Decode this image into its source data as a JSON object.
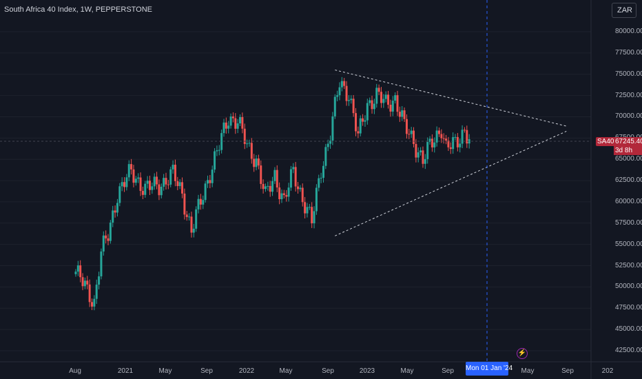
{
  "header": {
    "title": "South Africa 40 Index, 1W, PEPPERSTONE",
    "currency": "ZAR"
  },
  "chart_data": {
    "type": "candlestick",
    "title": "South Africa 40 Index, 1W, PEPPERSTONE",
    "ylim": [
      42000,
      82000
    ],
    "y_ticks": [
      "80000.00",
      "77500.00",
      "75000.00",
      "72500.00",
      "70000.00",
      "67500.00",
      "65000.00",
      "62500.00",
      "60000.00",
      "57500.00",
      "55000.00",
      "52500.00",
      "50000.00",
      "47500.00",
      "45000.00",
      "42500.00"
    ],
    "x_ticks": [
      "Aug",
      "2021",
      "May",
      "Sep",
      "2022",
      "May",
      "Sep",
      "2023",
      "May",
      "Sep",
      "May",
      "Sep",
      "202"
    ],
    "last_price": {
      "symbol": "SA40",
      "value": "67245.40",
      "countdown": "3d 8h"
    },
    "crosshair": {
      "date_label": "Mon 01 Jan '24"
    },
    "trendlines": [
      {
        "from": [
          "2022-09-26",
          75500
        ],
        "to": [
          "2024-08-26",
          68900
        ]
      },
      {
        "from": [
          "2022-09-26",
          56000
        ],
        "to": [
          "2024-08-26",
          68300
        ]
      }
    ],
    "ohlc": []
  },
  "colors": {
    "up": "#26a69a",
    "down": "#ef5350",
    "background": "#131722",
    "grid": "#1e222d",
    "crosshair": "#2962ff",
    "label": "#b2283a"
  },
  "icons": {
    "alert": "lightning-bolt-icon"
  }
}
